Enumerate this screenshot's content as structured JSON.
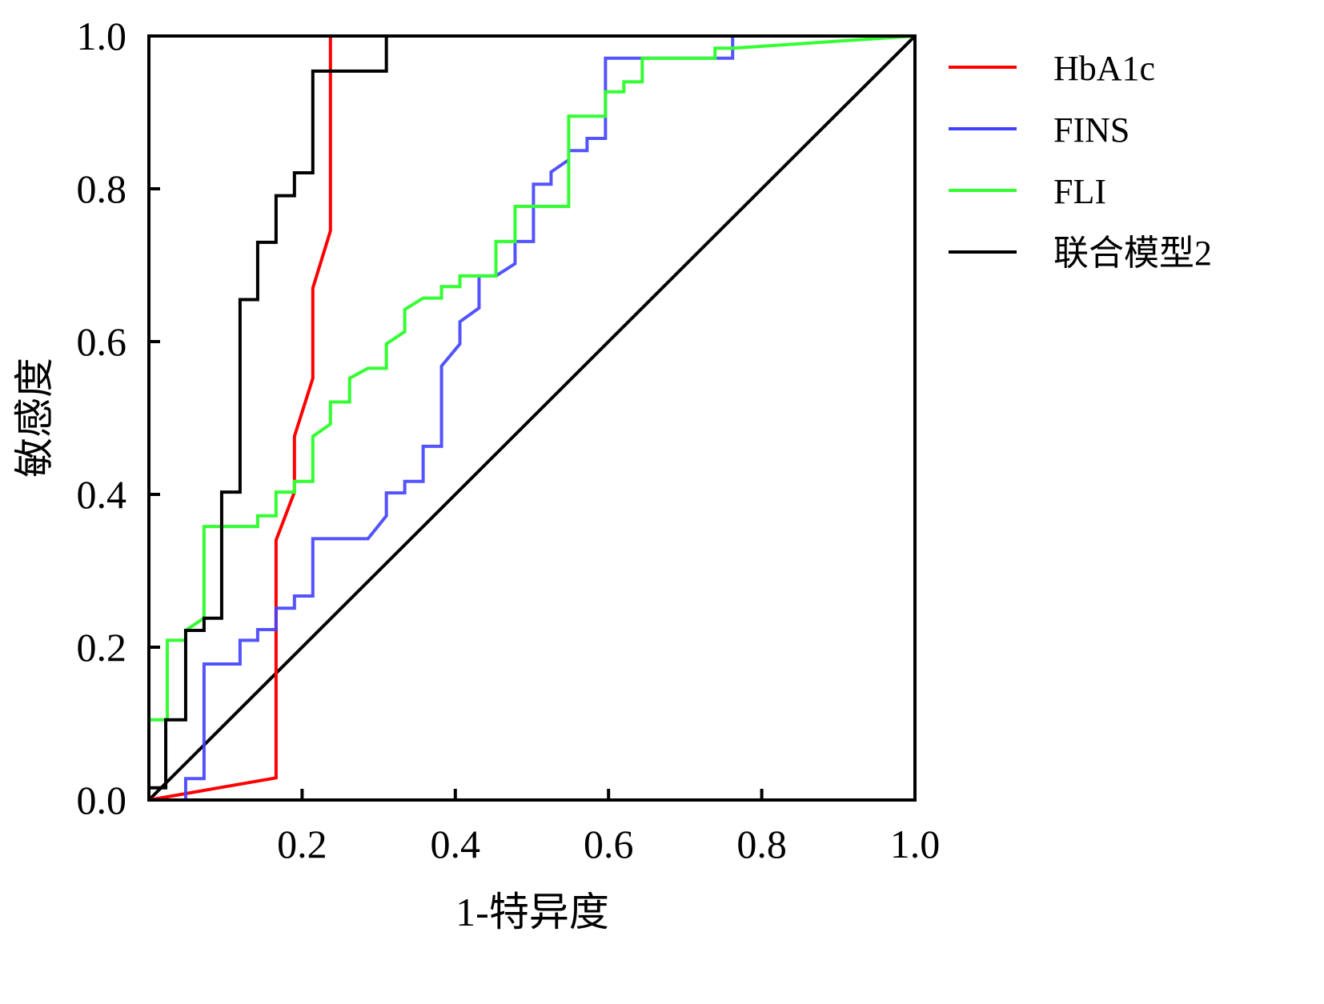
{
  "chart_data": {
    "type": "line",
    "title": "",
    "xlabel": "1-特异度",
    "ylabel": "敏感度",
    "xlim": [
      0,
      1
    ],
    "ylim": [
      0,
      1
    ],
    "xticks": [
      "0.2",
      "0.4",
      "0.6",
      "0.8",
      "1.0"
    ],
    "xtick_values": [
      0.2,
      0.4,
      0.6,
      0.8,
      1.0
    ],
    "yticks": [
      "0.0",
      "0.2",
      "0.4",
      "0.6",
      "0.8",
      "1.0"
    ],
    "ytick_values": [
      0.0,
      0.2,
      0.4,
      0.6,
      0.8,
      1.0
    ],
    "grid": false,
    "legend_position": "right",
    "series": [
      {
        "name": "HbA1c",
        "color": "#ff0000",
        "points": [
          [
            0,
            0
          ],
          [
            0.166,
            0.029
          ],
          [
            0.166,
            0.34
          ],
          [
            0.19,
            0.403
          ],
          [
            0.19,
            0.476
          ],
          [
            0.214,
            0.552
          ],
          [
            0.214,
            0.67
          ],
          [
            0.237,
            0.745
          ],
          [
            0.237,
            1
          ],
          [
            1,
            1
          ]
        ]
      },
      {
        "name": "FINS",
        "color": "#4040ff",
        "points": [
          [
            0,
            0
          ],
          [
            0.048,
            0
          ],
          [
            0.048,
            0.028
          ],
          [
            0.072,
            0.028
          ],
          [
            0.072,
            0.178
          ],
          [
            0.119,
            0.178
          ],
          [
            0.119,
            0.209
          ],
          [
            0.142,
            0.209
          ],
          [
            0.142,
            0.223
          ],
          [
            0.166,
            0.223
          ],
          [
            0.166,
            0.251
          ],
          [
            0.19,
            0.251
          ],
          [
            0.19,
            0.267
          ],
          [
            0.214,
            0.267
          ],
          [
            0.214,
            0.342
          ],
          [
            0.286,
            0.342
          ],
          [
            0.31,
            0.372
          ],
          [
            0.31,
            0.402
          ],
          [
            0.334,
            0.402
          ],
          [
            0.334,
            0.417
          ],
          [
            0.358,
            0.417
          ],
          [
            0.358,
            0.463
          ],
          [
            0.382,
            0.463
          ],
          [
            0.382,
            0.568
          ],
          [
            0.406,
            0.597
          ],
          [
            0.406,
            0.626
          ],
          [
            0.431,
            0.644
          ],
          [
            0.431,
            0.686
          ],
          [
            0.453,
            0.686
          ],
          [
            0.478,
            0.702
          ],
          [
            0.478,
            0.731
          ],
          [
            0.502,
            0.731
          ],
          [
            0.502,
            0.806
          ],
          [
            0.525,
            0.806
          ],
          [
            0.525,
            0.822
          ],
          [
            0.548,
            0.838
          ],
          [
            0.548,
            0.85
          ],
          [
            0.572,
            0.85
          ],
          [
            0.572,
            0.866
          ],
          [
            0.596,
            0.866
          ],
          [
            0.596,
            0.971
          ],
          [
            0.762,
            0.971
          ],
          [
            0.762,
            1
          ],
          [
            1,
            1
          ]
        ]
      },
      {
        "name": "FLI",
        "color": "#33ff33",
        "points": [
          [
            0,
            0
          ],
          [
            0,
            0.105
          ],
          [
            0.024,
            0.105
          ],
          [
            0.024,
            0.209
          ],
          [
            0.048,
            0.209
          ],
          [
            0.048,
            0.222
          ],
          [
            0.072,
            0.238
          ],
          [
            0.072,
            0.358
          ],
          [
            0.142,
            0.358
          ],
          [
            0.142,
            0.372
          ],
          [
            0.166,
            0.372
          ],
          [
            0.166,
            0.403
          ],
          [
            0.19,
            0.403
          ],
          [
            0.19,
            0.417
          ],
          [
            0.214,
            0.417
          ],
          [
            0.214,
            0.476
          ],
          [
            0.237,
            0.492
          ],
          [
            0.237,
            0.521
          ],
          [
            0.262,
            0.521
          ],
          [
            0.262,
            0.552
          ],
          [
            0.286,
            0.565
          ],
          [
            0.31,
            0.565
          ],
          [
            0.31,
            0.597
          ],
          [
            0.334,
            0.613
          ],
          [
            0.334,
            0.642
          ],
          [
            0.358,
            0.657
          ],
          [
            0.382,
            0.657
          ],
          [
            0.382,
            0.672
          ],
          [
            0.406,
            0.672
          ],
          [
            0.406,
            0.686
          ],
          [
            0.453,
            0.686
          ],
          [
            0.453,
            0.731
          ],
          [
            0.478,
            0.731
          ],
          [
            0.478,
            0.777
          ],
          [
            0.548,
            0.777
          ],
          [
            0.548,
            0.895
          ],
          [
            0.596,
            0.895
          ],
          [
            0.596,
            0.927
          ],
          [
            0.62,
            0.927
          ],
          [
            0.62,
            0.94
          ],
          [
            0.644,
            0.94
          ],
          [
            0.644,
            0.971
          ],
          [
            0.739,
            0.971
          ],
          [
            0.739,
            0.984
          ],
          [
            0.762,
            0.984
          ],
          [
            1,
            1
          ]
        ]
      },
      {
        "name": "联合模型2",
        "color": "#000000",
        "points": [
          [
            0,
            0
          ],
          [
            0,
            0.016
          ],
          [
            0.022,
            0.016
          ],
          [
            0.022,
            0.105
          ],
          [
            0.048,
            0.105
          ],
          [
            0.048,
            0.222
          ],
          [
            0.072,
            0.222
          ],
          [
            0.072,
            0.238
          ],
          [
            0.095,
            0.238
          ],
          [
            0.095,
            0.403
          ],
          [
            0.119,
            0.403
          ],
          [
            0.119,
            0.655
          ],
          [
            0.142,
            0.655
          ],
          [
            0.142,
            0.73
          ],
          [
            0.166,
            0.73
          ],
          [
            0.166,
            0.791
          ],
          [
            0.19,
            0.791
          ],
          [
            0.19,
            0.821
          ],
          [
            0.214,
            0.821
          ],
          [
            0.214,
            0.954
          ],
          [
            0.31,
            0.954
          ],
          [
            0.31,
            1
          ],
          [
            1,
            1
          ]
        ]
      }
    ],
    "reference_line": {
      "color": "#000000",
      "points": [
        [
          0,
          0
        ],
        [
          1,
          1
        ]
      ]
    }
  }
}
